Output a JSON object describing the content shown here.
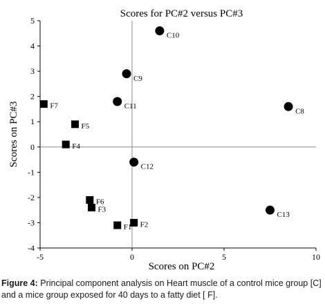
{
  "chart_data": {
    "type": "scatter",
    "title": "Scores for PC#2 versus PC#3",
    "xlabel": "Scores on PC#2",
    "ylabel": "Scores on PC#3",
    "xlim": [
      -5,
      10
    ],
    "ylim": [
      -4,
      5
    ],
    "x_ticks": [
      -5,
      0,
      5,
      10
    ],
    "y_ticks": [
      -4,
      -3,
      -2,
      -1,
      0,
      1,
      2,
      3,
      4,
      5
    ],
    "grid": false,
    "series": [
      {
        "marker": "circle",
        "points": [
          {
            "label": "C8",
            "x": 8.5,
            "y": 1.6
          },
          {
            "label": "C9",
            "x": -0.3,
            "y": 2.9
          },
          {
            "label": "C10",
            "x": 1.5,
            "y": 4.6
          },
          {
            "label": "C11",
            "x": -0.8,
            "y": 1.8
          },
          {
            "label": "C12",
            "x": 0.1,
            "y": -0.6
          },
          {
            "label": "C13",
            "x": 7.5,
            "y": -2.5
          }
        ]
      },
      {
        "marker": "square",
        "points": [
          {
            "label": "F1",
            "x": -0.8,
            "y": -3.1
          },
          {
            "label": "F2",
            "x": 0.1,
            "y": -3.0
          },
          {
            "label": "F3",
            "x": -2.2,
            "y": -2.4
          },
          {
            "label": "F4",
            "x": -3.6,
            "y": 0.1
          },
          {
            "label": "F5",
            "x": -3.1,
            "y": 0.9
          },
          {
            "label": "F6",
            "x": -2.3,
            "y": -2.1
          },
          {
            "label": "F7",
            "x": -4.8,
            "y": 1.7
          }
        ]
      }
    ]
  },
  "caption": {
    "lead": "Figure 4:",
    "text": " Principal component analysis on Heart muscle of a control mice group [C] and a mice group exposed for 40 days to a fatty diet [ F]."
  },
  "colors": {
    "marker": "#000000",
    "axis": "#000000"
  }
}
